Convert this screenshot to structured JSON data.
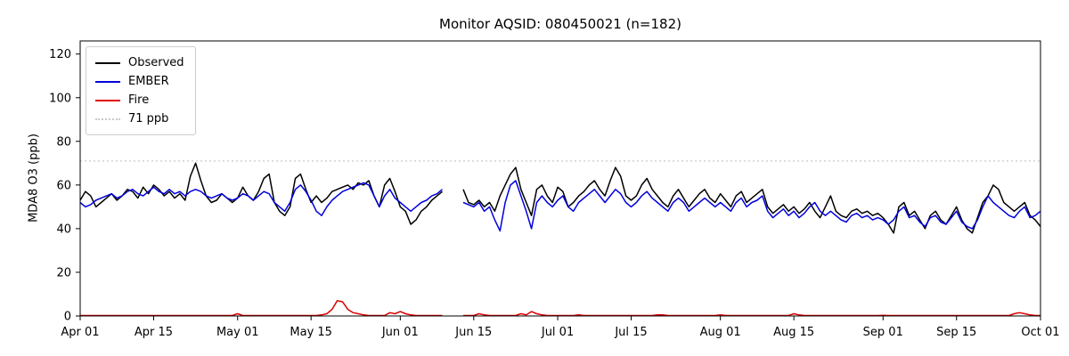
{
  "chart_data": {
    "type": "line",
    "title": "Monitor AQSID: 080450021 (n=182)",
    "xlabel": "",
    "ylabel": "MDA8 O3 (ppb)",
    "ylim": [
      0,
      126
    ],
    "grid": false,
    "legend_position": "upper left",
    "x_unit": "days since Apr 01, daily cadence",
    "x_ticks": [
      {
        "label": "Apr 01",
        "day": 0
      },
      {
        "label": "Apr 15",
        "day": 14
      },
      {
        "label": "May 01",
        "day": 30
      },
      {
        "label": "May 15",
        "day": 44
      },
      {
        "label": "Jun 01",
        "day": 61
      },
      {
        "label": "Jun 15",
        "day": 75
      },
      {
        "label": "Jul 01",
        "day": 91
      },
      {
        "label": "Jul 15",
        "day": 105
      },
      {
        "label": "Aug 01",
        "day": 122
      },
      {
        "label": "Aug 15",
        "day": 136
      },
      {
        "label": "Sep 01",
        "day": 153
      },
      {
        "label": "Sep 15",
        "day": 167
      },
      {
        "label": "Oct 01",
        "day": 183
      }
    ],
    "y_ticks": [
      0,
      20,
      40,
      60,
      80,
      100,
      120
    ],
    "threshold": {
      "label": "71 ppb",
      "value": 71,
      "color": "#c8c8c8",
      "style": "dotted"
    },
    "legend": [
      {
        "label": "Observed",
        "color": "#000000",
        "style": "solid"
      },
      {
        "label": "EMBER",
        "color": "#0000dd",
        "style": "solid"
      },
      {
        "label": "Fire",
        "color": "#dd0000",
        "style": "solid"
      },
      {
        "label": "71 ppb",
        "color": "#c8c8c8",
        "style": "dotted"
      }
    ],
    "series": [
      {
        "name": "Observed",
        "color": "#000000",
        "values": [
          53,
          57,
          55,
          50,
          52,
          54,
          56,
          53,
          55,
          58,
          57,
          54,
          59,
          56,
          60,
          58,
          55,
          57,
          54,
          56,
          53,
          64,
          70,
          62,
          55,
          52,
          53,
          56,
          54,
          52,
          54,
          59,
          55,
          53,
          57,
          63,
          65,
          52,
          48,
          46,
          50,
          63,
          65,
          58,
          52,
          55,
          52,
          54,
          57,
          58,
          59,
          60,
          58,
          61,
          60,
          62,
          55,
          50,
          60,
          63,
          57,
          50,
          48,
          42,
          44,
          48,
          50,
          53,
          55,
          57,
          null,
          null,
          null,
          58,
          52,
          51,
          53,
          50,
          52,
          48,
          55,
          60,
          65,
          68,
          58,
          52,
          46,
          58,
          60,
          55,
          52,
          59,
          57,
          50,
          52,
          55,
          57,
          60,
          62,
          58,
          55,
          62,
          68,
          64,
          55,
          53,
          55,
          60,
          63,
          58,
          55,
          52,
          50,
          55,
          58,
          54,
          50,
          53,
          56,
          58,
          54,
          52,
          56,
          53,
          50,
          55,
          57,
          52,
          54,
          56,
          58,
          50,
          47,
          49,
          51,
          48,
          50,
          47,
          49,
          52,
          48,
          45,
          50,
          55,
          48,
          46,
          45,
          48,
          49,
          47,
          48,
          46,
          47,
          45,
          42,
          38,
          50,
          52,
          46,
          48,
          44,
          40,
          46,
          48,
          44,
          42,
          46,
          50,
          44,
          40,
          38,
          45,
          52,
          55,
          60,
          58,
          52,
          50,
          48,
          50,
          52,
          46,
          44,
          41
        ]
      },
      {
        "name": "EMBER",
        "color": "#0000dd",
        "values": [
          52,
          50,
          51,
          53,
          54,
          55,
          56,
          54,
          55,
          57,
          58,
          56,
          55,
          57,
          59,
          57,
          56,
          58,
          56,
          57,
          55,
          57,
          58,
          57,
          55,
          54,
          55,
          56,
          54,
          53,
          54,
          56,
          55,
          53,
          55,
          57,
          56,
          52,
          50,
          48,
          52,
          58,
          60,
          57,
          53,
          48,
          46,
          50,
          53,
          55,
          57,
          58,
          59,
          60,
          61,
          60,
          55,
          50,
          55,
          58,
          54,
          52,
          50,
          48,
          50,
          52,
          53,
          55,
          56,
          58,
          null,
          null,
          null,
          52,
          51,
          50,
          52,
          48,
          50,
          44,
          39,
          52,
          60,
          62,
          55,
          48,
          40,
          52,
          55,
          52,
          50,
          53,
          55,
          50,
          48,
          52,
          54,
          56,
          58,
          55,
          52,
          55,
          58,
          56,
          52,
          50,
          52,
          55,
          57,
          54,
          52,
          50,
          48,
          52,
          54,
          52,
          48,
          50,
          52,
          54,
          52,
          50,
          52,
          50,
          48,
          52,
          54,
          50,
          52,
          53,
          55,
          48,
          45,
          47,
          49,
          46,
          48,
          45,
          47,
          50,
          52,
          48,
          46,
          48,
          46,
          44,
          43,
          46,
          47,
          45,
          46,
          44,
          45,
          44,
          42,
          44,
          48,
          50,
          45,
          46,
          43,
          41,
          45,
          46,
          43,
          42,
          45,
          48,
          43,
          41,
          40,
          44,
          50,
          55,
          52,
          50,
          48,
          46,
          45,
          48,
          50,
          45,
          46,
          48
        ]
      },
      {
        "name": "Fire",
        "color": "#dd0000",
        "values": [
          0.2,
          0.2,
          0.2,
          0.2,
          0.2,
          0.2,
          0.2,
          0.2,
          0.2,
          0.2,
          0.2,
          0.2,
          0.2,
          0.2,
          0.2,
          0.2,
          0.2,
          0.2,
          0.2,
          0.2,
          0.2,
          0.2,
          0.2,
          0.2,
          0.2,
          0.2,
          0.2,
          0.2,
          0.2,
          0.2,
          1,
          0.2,
          0.2,
          0.2,
          0.2,
          0.2,
          0.2,
          0.2,
          0.2,
          0.2,
          0.2,
          0.2,
          0.2,
          0.2,
          0.2,
          0.2,
          0.5,
          1,
          3,
          7,
          6.5,
          3,
          1.5,
          1,
          0.5,
          0.2,
          0.2,
          0.2,
          0.2,
          1.5,
          1,
          2,
          1,
          0.5,
          0.2,
          0.2,
          0.2,
          0.2,
          0.2,
          0.2,
          null,
          null,
          null,
          0.2,
          0.2,
          0.2,
          1,
          0.5,
          0.2,
          0.2,
          0.2,
          0.2,
          0.2,
          0.2,
          1,
          0.5,
          2,
          1,
          0.5,
          0.2,
          0.2,
          0.2,
          0.2,
          0.2,
          0.2,
          0.5,
          0.2,
          0.2,
          0.2,
          0.2,
          0.2,
          0.2,
          0.2,
          0.2,
          0.2,
          0.2,
          0.2,
          0.2,
          0.2,
          0.2,
          0.5,
          0.5,
          0.2,
          0.2,
          0.2,
          0.2,
          0.2,
          0.2,
          0.2,
          0.2,
          0.2,
          0.2,
          0.5,
          0.2,
          0.2,
          0.2,
          0.2,
          0.2,
          0.2,
          0.2,
          0.2,
          0.2,
          0.2,
          0.2,
          0.2,
          0.2,
          1,
          0.5,
          0.2,
          0.2,
          0.2,
          0.2,
          0.2,
          0.2,
          0.2,
          0.2,
          0.2,
          0.2,
          0.2,
          0.2,
          0.2,
          0.2,
          0.2,
          0.3,
          0.2,
          0.2,
          0.2,
          0.2,
          0.2,
          0.2,
          0.2,
          0.2,
          0.2,
          0.2,
          0.2,
          0.2,
          0.2,
          0.2,
          0.2,
          0.2,
          0.2,
          0.2,
          0.2,
          0.2,
          0.2,
          0.2,
          0.2,
          0.2,
          1,
          1.5,
          1,
          0.5,
          0.2,
          0.2
        ]
      }
    ]
  }
}
